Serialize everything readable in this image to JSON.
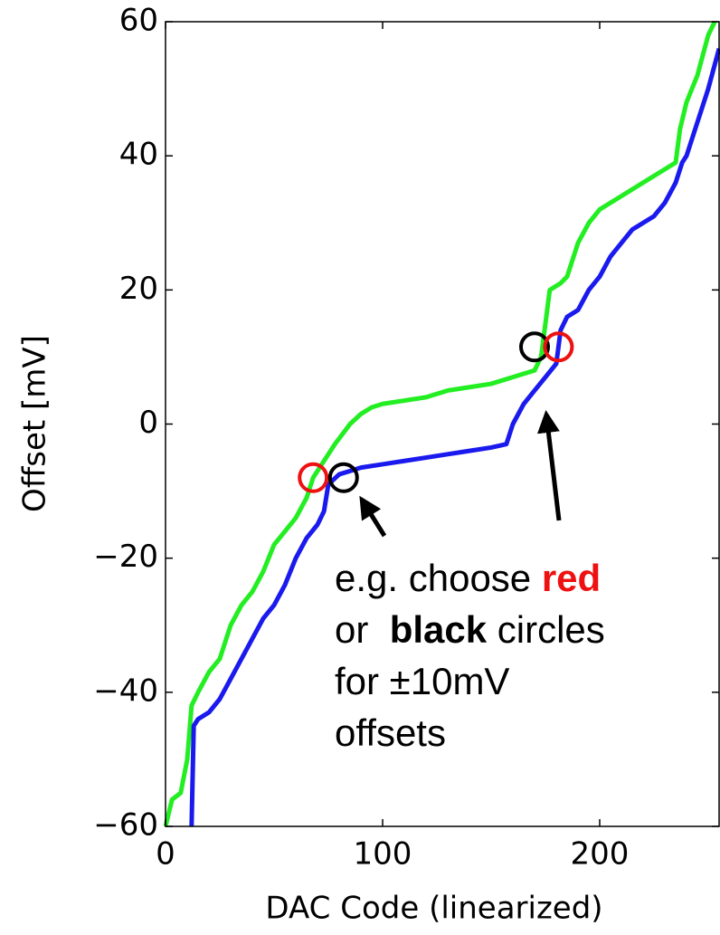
{
  "chart_data": {
    "type": "line",
    "xlabel": "DAC Code (linearized)",
    "ylabel": "Offset [mV]",
    "xlim": [
      0,
      255
    ],
    "ylim": [
      -60,
      60
    ],
    "xticks": [
      0,
      100,
      200
    ],
    "yticks": [
      {
        "value": -60,
        "label": "−60"
      },
      {
        "value": -40,
        "label": "−40"
      },
      {
        "value": -20,
        "label": "−20"
      },
      0,
      20,
      40,
      60
    ],
    "series": [
      {
        "color": "#22ee22",
        "x": [
          0,
          3,
          7,
          10,
          12,
          15,
          20,
          25,
          30,
          35,
          40,
          45,
          50,
          55,
          60,
          65,
          68,
          72,
          78,
          85,
          90,
          95,
          100,
          110,
          120,
          130,
          140,
          150,
          160,
          170,
          173,
          175,
          177,
          182,
          185,
          190,
          195,
          200,
          210,
          220,
          230,
          235,
          237,
          240,
          245,
          250,
          253
        ],
        "values": [
          -60,
          -56,
          -55,
          -50,
          -42,
          -40,
          -37,
          -35,
          -30,
          -27,
          -25,
          -22,
          -18,
          -16,
          -14,
          -11,
          -8,
          -6,
          -3,
          0,
          1.5,
          2.5,
          3,
          3.5,
          4,
          5,
          5.5,
          6,
          7,
          8,
          10,
          15,
          20,
          21,
          22,
          27,
          30,
          32,
          34,
          36,
          38,
          39,
          44,
          48,
          52,
          58,
          60
        ]
      },
      {
        "color": "#1a1aee",
        "x": [
          12,
          13,
          15,
          20,
          25,
          30,
          35,
          40,
          45,
          50,
          55,
          60,
          65,
          70,
          73,
          75,
          80,
          90,
          100,
          110,
          120,
          130,
          140,
          150,
          157,
          160,
          165,
          170,
          175,
          180,
          182,
          185,
          190,
          195,
          200,
          205,
          210,
          215,
          220,
          225,
          230,
          235,
          238,
          240,
          245,
          250,
          255
        ],
        "values": [
          -60,
          -45,
          -44,
          -43,
          -41,
          -38,
          -35,
          -32,
          -29,
          -27,
          -24,
          -20,
          -17,
          -15,
          -13,
          -9,
          -7.5,
          -6.5,
          -6,
          -5.5,
          -5,
          -4.5,
          -4,
          -3.5,
          -3,
          0,
          3,
          5,
          7,
          9,
          14,
          16,
          17,
          20,
          22,
          25,
          27,
          29,
          30,
          31,
          33,
          36,
          39,
          40,
          45,
          50,
          56
        ]
      }
    ],
    "markers": [
      {
        "x": 68,
        "y": -8,
        "color": "#ee1111"
      },
      {
        "x": 82,
        "y": -8,
        "color": "#000000"
      },
      {
        "x": 170,
        "y": 11.5,
        "color": "#000000"
      },
      {
        "x": 181,
        "y": 11.5,
        "color": "#ee1111"
      }
    ],
    "annotation": [
      [
        {
          "text": "e.g. choose "
        },
        {
          "text": "red",
          "color": "#ee1111",
          "bold": true
        }
      ],
      [
        {
          "text": "or  "
        },
        {
          "text": "black",
          "bold": true
        },
        {
          "text": " circles"
        }
      ],
      [
        {
          "text": "for ±10mV"
        }
      ],
      [
        {
          "text": "offsets"
        }
      ]
    ]
  }
}
